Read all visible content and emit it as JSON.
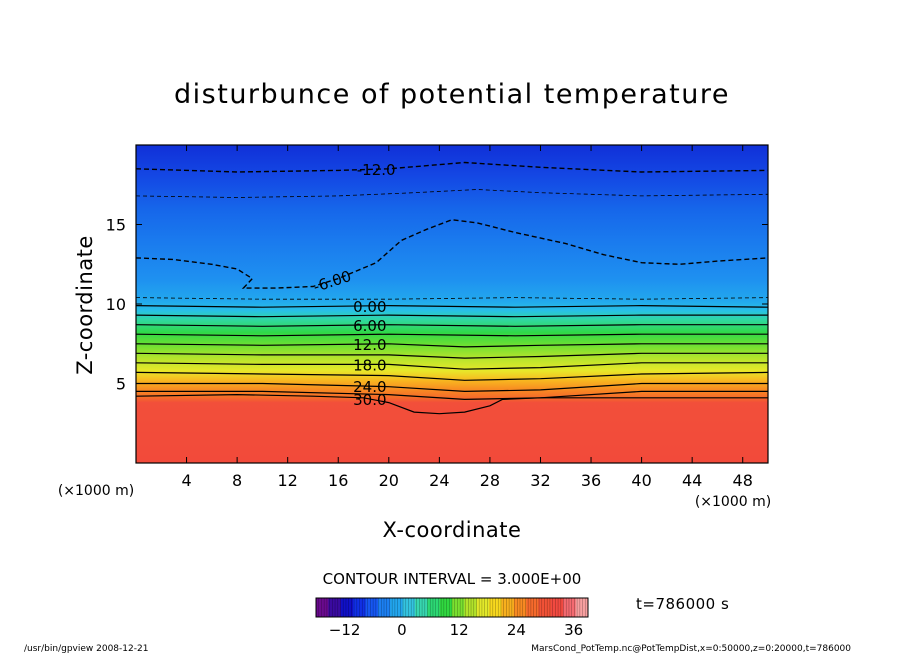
{
  "chart_data": {
    "type": "heatmap",
    "title": "disturbunce of potential temperature",
    "xlabel": "X-coordinate",
    "ylabel": "Z-coordinate",
    "x_unit": "(×1000 m)",
    "y_unit": "(×1000 m)",
    "xlim": [
      0,
      50
    ],
    "ylim": [
      0,
      20
    ],
    "x_ticks": [
      4,
      8,
      12,
      16,
      20,
      24,
      28,
      32,
      36,
      40,
      44,
      48
    ],
    "y_ticks": [
      5,
      10,
      15
    ],
    "contour_interval_text": "CONTOUR INTERVAL = 3.000E+00",
    "time_label": "t=786000 s",
    "colorbar": {
      "range": [
        -18,
        39
      ],
      "ticks": [
        -12,
        0,
        12,
        24,
        36
      ],
      "colors": [
        "#6a0a8e",
        "#3a0aa0",
        "#1010c8",
        "#1030e6",
        "#1656f2",
        "#1c7ff2",
        "#22a6ee",
        "#34c4e0",
        "#37d6b0",
        "#2cd874",
        "#30d840",
        "#7ae030",
        "#b2e22a",
        "#e2e82a",
        "#f8d81e",
        "#f8b01e",
        "#f88a22",
        "#f66a2c",
        "#f25236",
        "#f24a40",
        "#f46a70",
        "#f8a0a0"
      ]
    },
    "contour_lines": [
      {
        "label": "-12.0",
        "level": -12,
        "style": "dashed",
        "points": [
          [
            0,
            18.5
          ],
          [
            8,
            18.3
          ],
          [
            16,
            18.4
          ],
          [
            20,
            18.5
          ],
          [
            26,
            18.9
          ],
          [
            32,
            18.6
          ],
          [
            40,
            18.3
          ],
          [
            50,
            18.4
          ]
        ]
      },
      {
        "label": "",
        "level": -9,
        "style": "dashed-thin",
        "points": [
          [
            0,
            16.8
          ],
          [
            8,
            16.7
          ],
          [
            16,
            16.8
          ],
          [
            22,
            17.0
          ],
          [
            27,
            17.2
          ],
          [
            32,
            17.0
          ],
          [
            40,
            16.8
          ],
          [
            50,
            16.9
          ]
        ]
      },
      {
        "label": "-6.00",
        "level": -6,
        "style": "dashed",
        "points": [
          [
            0,
            12.9
          ],
          [
            3,
            12.8
          ],
          [
            6,
            12.5
          ],
          [
            8,
            12.2
          ],
          [
            9.2,
            11.6
          ],
          [
            8.5,
            11.0
          ],
          [
            11,
            11.0
          ],
          [
            14,
            11.1
          ],
          [
            16,
            11.6
          ],
          [
            19,
            12.6
          ],
          [
            21,
            14.0
          ],
          [
            23,
            14.7
          ],
          [
            25,
            15.3
          ],
          [
            27,
            15.1
          ],
          [
            30,
            14.5
          ],
          [
            34,
            13.8
          ],
          [
            37,
            13.1
          ],
          [
            40,
            12.6
          ],
          [
            43,
            12.5
          ],
          [
            46,
            12.7
          ],
          [
            50,
            12.9
          ]
        ]
      },
      {
        "label": "",
        "level": -3,
        "style": "dashed-thin",
        "points": [
          [
            0,
            10.4
          ],
          [
            10,
            10.3
          ],
          [
            20,
            10.3
          ],
          [
            30,
            10.4
          ],
          [
            40,
            10.3
          ],
          [
            50,
            10.4
          ]
        ]
      },
      {
        "label": "0.00",
        "level": 0,
        "style": "solid",
        "points": [
          [
            0,
            9.9
          ],
          [
            10,
            9.8
          ],
          [
            20,
            9.9
          ],
          [
            30,
            9.8
          ],
          [
            40,
            9.9
          ],
          [
            50,
            9.8
          ]
        ]
      },
      {
        "label": "",
        "level": 3,
        "style": "solid",
        "points": [
          [
            0,
            9.3
          ],
          [
            10,
            9.2
          ],
          [
            20,
            9.3
          ],
          [
            30,
            9.2
          ],
          [
            40,
            9.3
          ],
          [
            50,
            9.3
          ]
        ]
      },
      {
        "label": "6.00",
        "level": 6,
        "style": "solid",
        "points": [
          [
            0,
            8.7
          ],
          [
            10,
            8.6
          ],
          [
            20,
            8.7
          ],
          [
            30,
            8.6
          ],
          [
            40,
            8.7
          ],
          [
            50,
            8.7
          ]
        ]
      },
      {
        "label": "",
        "level": 9,
        "style": "solid",
        "points": [
          [
            0,
            8.1
          ],
          [
            10,
            8.0
          ],
          [
            20,
            8.1
          ],
          [
            30,
            8.0
          ],
          [
            40,
            8.1
          ],
          [
            50,
            8.1
          ]
        ]
      },
      {
        "label": "12.0",
        "level": 12,
        "style": "solid",
        "points": [
          [
            0,
            7.5
          ],
          [
            10,
            7.4
          ],
          [
            20,
            7.5
          ],
          [
            26,
            7.3
          ],
          [
            32,
            7.4
          ],
          [
            40,
            7.5
          ],
          [
            50,
            7.5
          ]
        ]
      },
      {
        "label": "",
        "level": 15,
        "style": "solid",
        "points": [
          [
            0,
            6.9
          ],
          [
            10,
            6.8
          ],
          [
            20,
            6.8
          ],
          [
            26,
            6.6
          ],
          [
            32,
            6.7
          ],
          [
            40,
            6.9
          ],
          [
            50,
            6.9
          ]
        ]
      },
      {
        "label": "18.0",
        "level": 18,
        "style": "solid",
        "points": [
          [
            0,
            6.3
          ],
          [
            10,
            6.2
          ],
          [
            20,
            6.2
          ],
          [
            26,
            5.9
          ],
          [
            32,
            6.0
          ],
          [
            40,
            6.3
          ],
          [
            50,
            6.3
          ]
        ]
      },
      {
        "label": "",
        "level": 21,
        "style": "solid",
        "points": [
          [
            0,
            5.7
          ],
          [
            10,
            5.6
          ],
          [
            20,
            5.5
          ],
          [
            26,
            5.2
          ],
          [
            32,
            5.3
          ],
          [
            40,
            5.6
          ],
          [
            50,
            5.7
          ]
        ]
      },
      {
        "label": "24.0",
        "level": 24,
        "style": "solid",
        "points": [
          [
            0,
            5.0
          ],
          [
            10,
            5.0
          ],
          [
            20,
            4.8
          ],
          [
            26,
            4.5
          ],
          [
            32,
            4.6
          ],
          [
            40,
            5.0
          ],
          [
            50,
            5.0
          ]
        ]
      },
      {
        "label": "",
        "level": 27,
        "style": "solid",
        "points": [
          [
            0,
            4.5
          ],
          [
            10,
            4.5
          ],
          [
            20,
            4.3
          ],
          [
            26,
            4.0
          ],
          [
            32,
            4.1
          ],
          [
            40,
            4.5
          ],
          [
            50,
            4.5
          ]
        ]
      },
      {
        "label": "30.0",
        "level": 30,
        "style": "solid",
        "points": [
          [
            0,
            4.2
          ],
          [
            8,
            4.3
          ],
          [
            14,
            4.2
          ],
          [
            18,
            4.1
          ],
          [
            20,
            3.8
          ],
          [
            22,
            3.2
          ],
          [
            24,
            3.1
          ],
          [
            26,
            3.2
          ],
          [
            28,
            3.6
          ],
          [
            29,
            4.0
          ],
          [
            32,
            4.1
          ],
          [
            40,
            4.1
          ],
          [
            50,
            4.1
          ]
        ]
      }
    ]
  },
  "footer": {
    "left": "/usr/bin/gpview   2008-12-21",
    "right": "MarsCond_PotTemp.nc@PotTempDist,x=0:50000,z=0:20000,t=786000"
  }
}
